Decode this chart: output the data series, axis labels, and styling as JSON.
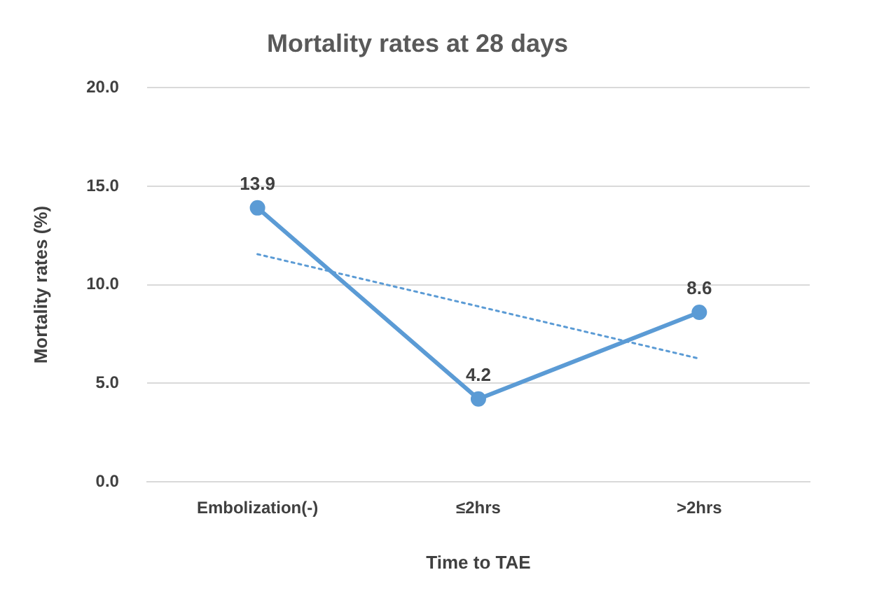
{
  "chart_data": {
    "type": "line",
    "title": "Mortality rates at 28 days",
    "xlabel": "Time to TAE",
    "ylabel": "Mortality rates (%)",
    "categories": [
      "Embolization(-)",
      "≤2hrs",
      ">2hrs"
    ],
    "series": [
      {
        "color": "#5b9bd5",
        "values": [
          13.9,
          4.2,
          8.6
        ],
        "value_labels": [
          "13.9",
          "4.2",
          "8.6"
        ],
        "marker": "circle",
        "line_style": "solid"
      },
      {
        "type": "line",
        "color": "#5b9bd5",
        "values": [
          11.55,
          8.9,
          6.25
        ],
        "marker": "none",
        "line_style": "dotted"
      }
    ],
    "ylim": [
      0,
      20
    ],
    "yticks": [
      {
        "value": 0,
        "label": "0.0"
      },
      {
        "value": 5,
        "label": "5.0"
      },
      {
        "value": 10,
        "label": "10.0"
      },
      {
        "value": 15,
        "label": "15.0"
      },
      {
        "value": 20,
        "label": "20.0"
      }
    ],
    "grid": "y",
    "legend": false
  }
}
